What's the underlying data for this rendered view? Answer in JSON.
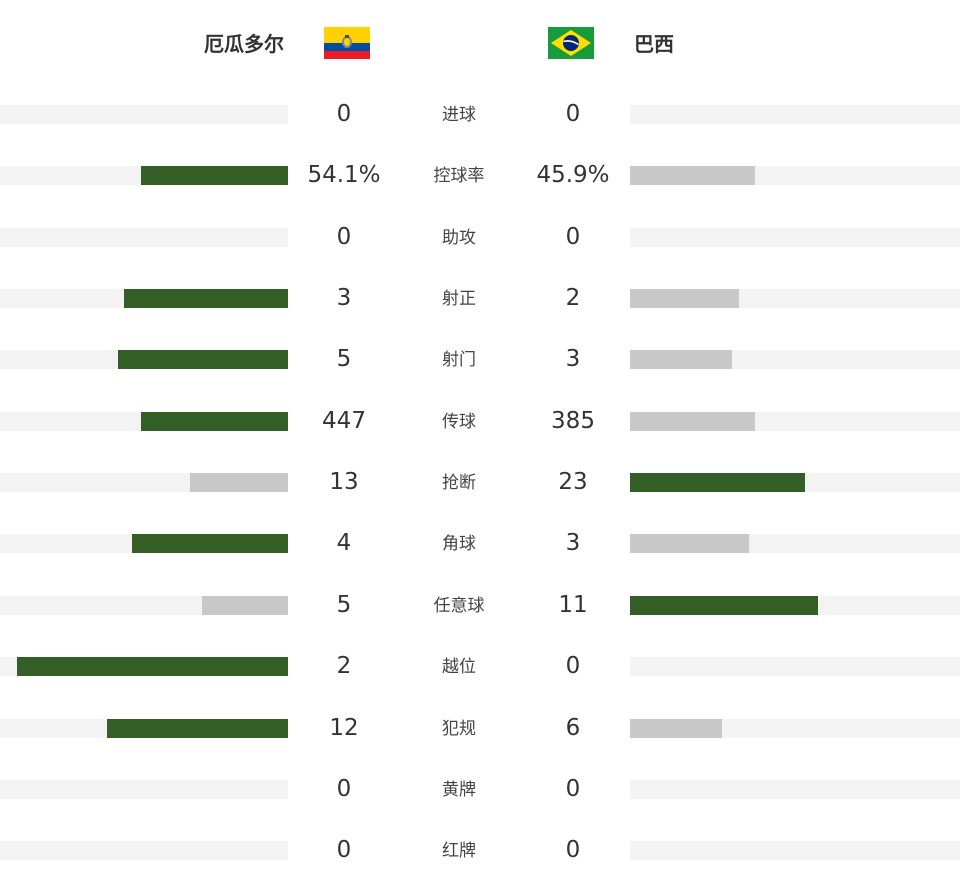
{
  "colors": {
    "leader": "#335f26",
    "trailer": "#c8c8c8",
    "track": "#f3f3f3"
  },
  "home": {
    "name": "厄瓜多尔",
    "flag_icon": "ecuador-flag-icon"
  },
  "away": {
    "name": "巴西",
    "flag_icon": "brazil-flag-icon"
  },
  "stats": [
    {
      "label": "进球",
      "home": "0",
      "away": "0",
      "home_share": 0,
      "away_share": 0
    },
    {
      "label": "控球率",
      "home": "54.1%",
      "away": "45.9%",
      "home_share": 0.51,
      "away_share": 0.38
    },
    {
      "label": "助攻",
      "home": "0",
      "away": "0",
      "home_share": 0,
      "away_share": 0
    },
    {
      "label": "射正",
      "home": "3",
      "away": "2",
      "home_share": 0.57,
      "away_share": 0.33
    },
    {
      "label": "射门",
      "home": "5",
      "away": "3",
      "home_share": 0.59,
      "away_share": 0.31
    },
    {
      "label": "传球",
      "home": "447",
      "away": "385",
      "home_share": 0.51,
      "away_share": 0.38
    },
    {
      "label": "抢断",
      "home": "13",
      "away": "23",
      "home_share": 0.34,
      "away_share": 0.53
    },
    {
      "label": "角球",
      "home": "4",
      "away": "3",
      "home_share": 0.54,
      "away_share": 0.36
    },
    {
      "label": "任意球",
      "home": "5",
      "away": "11",
      "home_share": 0.3,
      "away_share": 0.57
    },
    {
      "label": "越位",
      "home": "2",
      "away": "0",
      "home_share": 0.94,
      "away_share": 0
    },
    {
      "label": "犯规",
      "home": "12",
      "away": "6",
      "home_share": 0.63,
      "away_share": 0.28
    },
    {
      "label": "黄牌",
      "home": "0",
      "away": "0",
      "home_share": 0,
      "away_share": 0
    },
    {
      "label": "红牌",
      "home": "0",
      "away": "0",
      "home_share": 0,
      "away_share": 0
    }
  ]
}
